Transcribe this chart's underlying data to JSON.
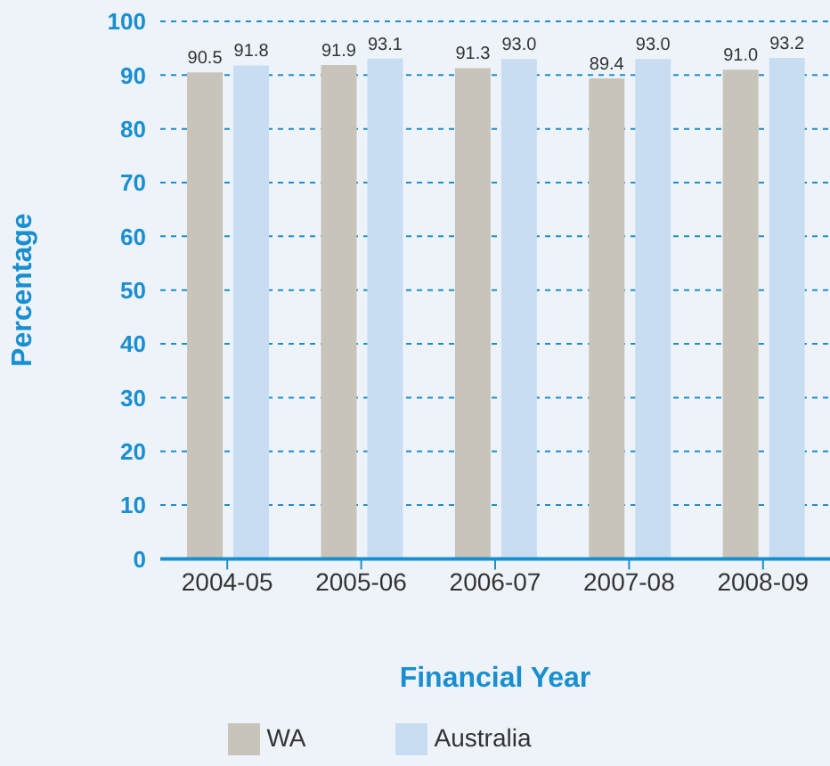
{
  "chart_data": {
    "type": "bar",
    "xlabel": "Financial Year",
    "ylabel": "Percentage",
    "categories": [
      "2004-05",
      "2005-06",
      "2006-07",
      "2007-08",
      "2008-09"
    ],
    "series": [
      {
        "name": "WA",
        "color": "#c8c4b9",
        "values": [
          90.5,
          91.9,
          91.3,
          89.4,
          91.0
        ],
        "value_labels": [
          "90.5",
          "91.9",
          "91.3",
          "89.4",
          "91.0"
        ]
      },
      {
        "name": "Australia",
        "color": "#c8ddf2",
        "values": [
          91.8,
          93.1,
          93.0,
          93.0,
          93.2
        ],
        "value_labels": [
          "91.8",
          "93.1",
          "93.0",
          "93.0",
          "93.2"
        ]
      }
    ],
    "ylim": [
      0,
      100
    ],
    "yticks": [
      0,
      10,
      20,
      30,
      40,
      50,
      60,
      70,
      80,
      90,
      100
    ],
    "grid": "y",
    "legend": "bottom"
  }
}
